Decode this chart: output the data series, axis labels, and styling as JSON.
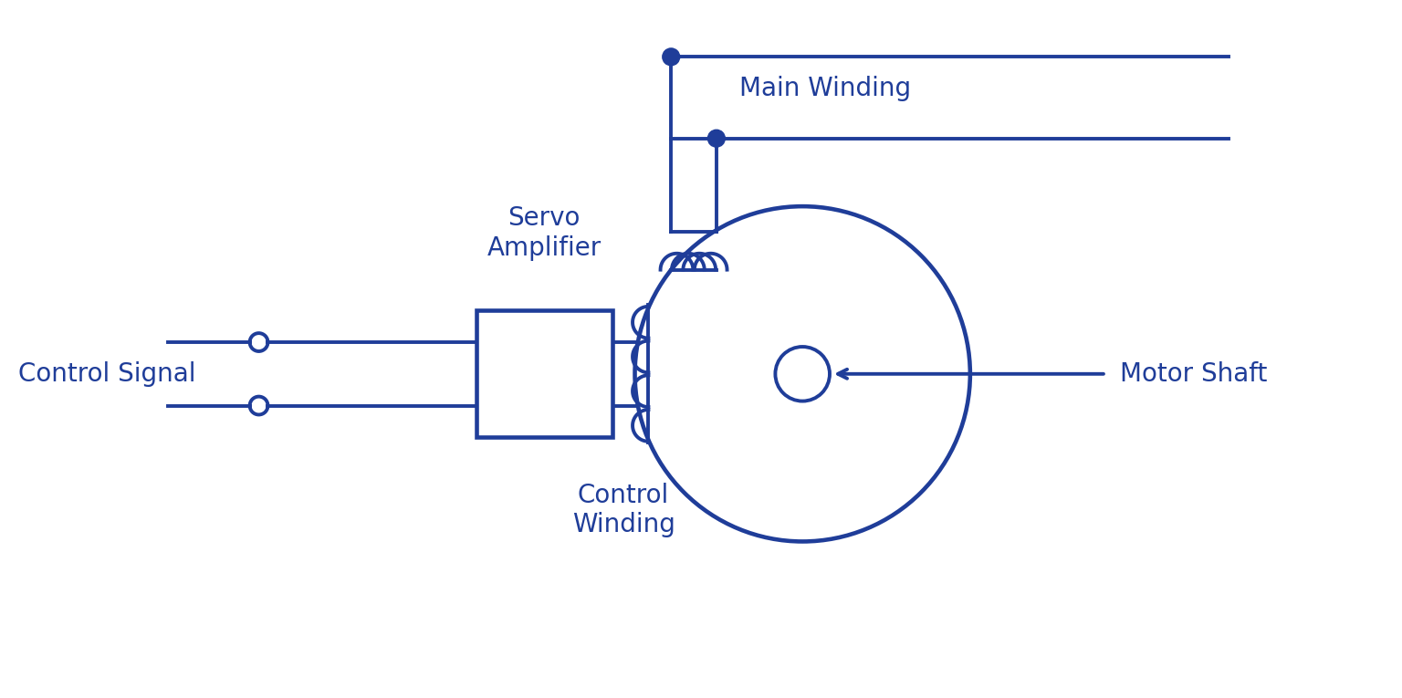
{
  "color": "#1f3d99",
  "bg_color": "#ffffff",
  "line_width": 2.8,
  "fig_width": 15.36,
  "fig_height": 7.65,
  "labels": {
    "control_signal": "Control Signal",
    "servo_amplifier": "Servo\nAmplifier",
    "control_winding": "Control\nWinding",
    "main_winding": "Main Winding",
    "motor_shaft": "Motor Shaft"
  },
  "label_fontsize": 20
}
